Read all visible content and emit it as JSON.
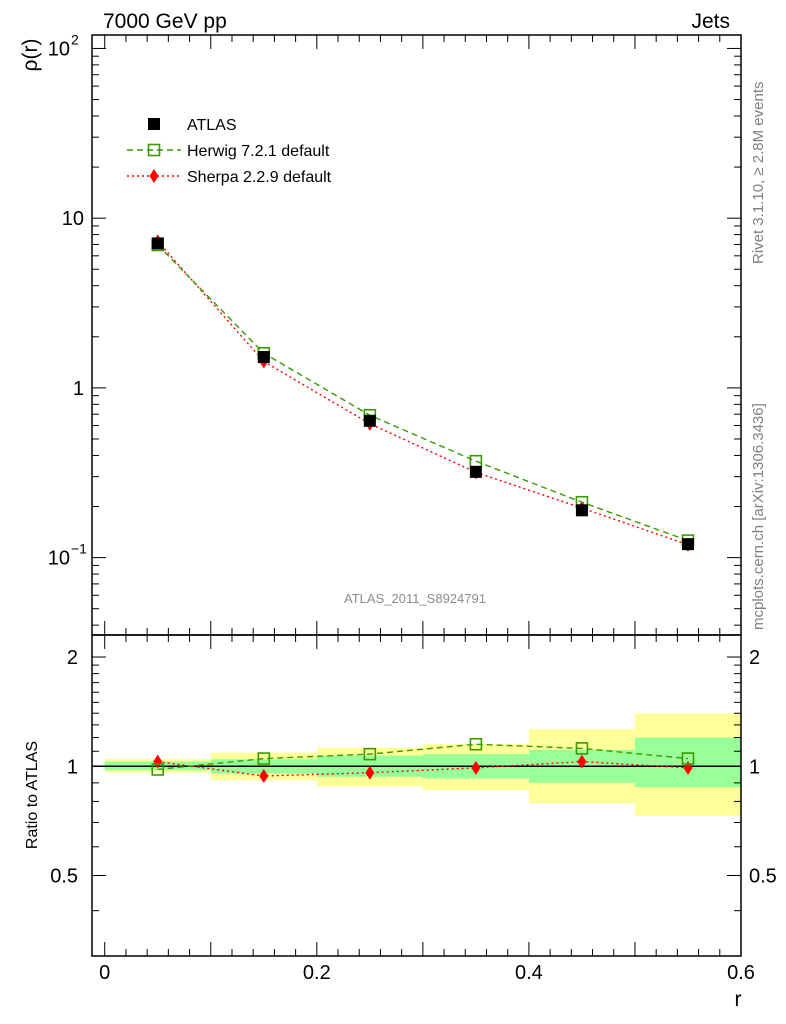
{
  "header": {
    "left": "7000 GeV pp",
    "right": "Jets"
  },
  "side_labels": {
    "rivet": "Rivet 3.1.10, ≥ 2.8M events",
    "mcplots": "mcplots.cern.ch [arXiv:1306.3436]"
  },
  "watermark": "ATLAS_2011_S8924791",
  "chart_data": [
    {
      "type": "line",
      "panel": "main",
      "ylabel": "ρ(r)",
      "xlabel": "",
      "xlim": [
        -0.012,
        0.6
      ],
      "ylim": [
        0.035,
        120
      ],
      "y_scale": "log",
      "yticks": [
        {
          "value": 100,
          "label": "10",
          "exp": "2"
        },
        {
          "value": 10,
          "label": "10",
          "exp": ""
        },
        {
          "value": 1,
          "label": "1",
          "exp": ""
        },
        {
          "value": 0.1,
          "label": "10",
          "exp": "−1"
        }
      ],
      "legend_position": "top-left",
      "x": [
        0.05,
        0.15,
        0.25,
        0.35,
        0.45,
        0.55
      ],
      "series": [
        {
          "name": "ATLAS",
          "marker": "filled-square",
          "color": "#000000",
          "line": "none",
          "values": [
            7.1,
            1.52,
            0.64,
            0.32,
            0.19,
            0.12
          ]
        },
        {
          "name": "Herwig 7.2.1 default",
          "marker": "open-square",
          "color": "#3a9a00",
          "line": "dashed",
          "values": [
            6.95,
            1.6,
            0.69,
            0.37,
            0.212,
            0.126
          ]
        },
        {
          "name": "Sherpa 2.2.9 default",
          "marker": "filled-diamond",
          "color": "#ff0000",
          "line": "dotted",
          "values": [
            7.3,
            1.43,
            0.615,
            0.318,
            0.196,
            0.119
          ]
        }
      ]
    },
    {
      "type": "line",
      "panel": "ratio",
      "ylabel": "Ratio to ATLAS",
      "xlabel": "r",
      "xlim": [
        -0.012,
        0.6
      ],
      "ylim": [
        0.3,
        2.3
      ],
      "y_scale": "log",
      "yticks": [
        {
          "value": 0.5,
          "label": "0.5"
        },
        {
          "value": 1,
          "label": "1"
        },
        {
          "value": 2,
          "label": "2"
        }
      ],
      "xticks": [
        {
          "value": 0,
          "label": "0"
        },
        {
          "value": 0.2,
          "label": "0.2"
        },
        {
          "value": 0.4,
          "label": "0.4"
        },
        {
          "value": 0.6,
          "label": "0.6"
        }
      ],
      "bands": [
        {
          "x0": 0.0,
          "x1": 0.1,
          "total": [
            0.96,
            1.045
          ],
          "stat": [
            0.975,
            1.03
          ]
        },
        {
          "x0": 0.1,
          "x1": 0.2,
          "total": [
            0.915,
            1.09
          ],
          "stat": [
            0.955,
            1.045
          ]
        },
        {
          "x0": 0.2,
          "x1": 0.3,
          "total": [
            0.88,
            1.125
          ],
          "stat": [
            0.935,
            1.07
          ]
        },
        {
          "x0": 0.3,
          "x1": 0.4,
          "total": [
            0.86,
            1.15
          ],
          "stat": [
            0.925,
            1.08
          ]
        },
        {
          "x0": 0.4,
          "x1": 0.5,
          "total": [
            0.79,
            1.265
          ],
          "stat": [
            0.9,
            1.11
          ]
        },
        {
          "x0": 0.5,
          "x1": 0.6,
          "total": [
            0.73,
            1.4
          ],
          "stat": [
            0.875,
            1.2
          ]
        }
      ],
      "band_colors": {
        "total": "#ffff99",
        "stat": "#99ff99"
      },
      "reference_line": 1,
      "x": [
        0.05,
        0.15,
        0.25,
        0.35,
        0.45,
        0.55
      ],
      "series": [
        {
          "name": "Herwig 7.2.1 default",
          "marker": "open-square",
          "color": "#3a9a00",
          "line": "dashed",
          "values": [
            0.98,
            1.05,
            1.08,
            1.15,
            1.12,
            1.05
          ]
        },
        {
          "name": "Sherpa 2.2.9 default",
          "marker": "filled-diamond",
          "color": "#ff0000",
          "line": "dotted",
          "values": [
            1.03,
            0.94,
            0.96,
            0.99,
            1.03,
            0.99
          ]
        }
      ]
    }
  ]
}
